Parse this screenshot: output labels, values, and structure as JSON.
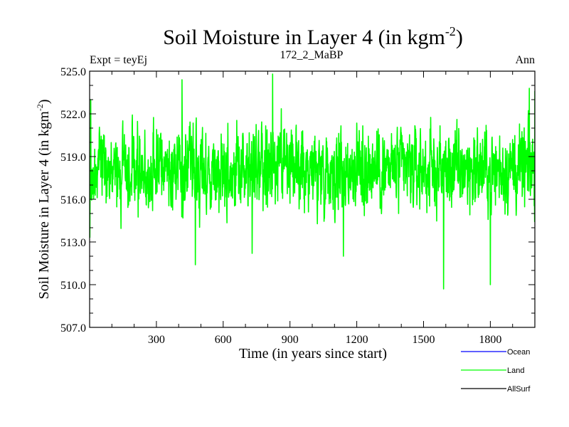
{
  "chart_data": {
    "type": "line",
    "title_main": "Soil Moisture in Layer 4 (in kgm",
    "title_sup": "-2",
    "title_close": ")",
    "subtitle_left": "Expt = teyEj",
    "subtitle_center": "172_2_MaBP",
    "subtitle_right": "Ann",
    "xlabel": "Time (in years since start)",
    "ylabel_main": "Soil Moisture in Layer 4 (in kgm",
    "ylabel_sup": "-2",
    "ylabel_close": ")",
    "xlim": [
      0,
      2000
    ],
    "ylim": [
      507.0,
      525.0
    ],
    "x_ticks": [
      300,
      600,
      900,
      1200,
      1500,
      1800
    ],
    "x_tick_labels": [
      "300",
      "600",
      "900",
      "1200",
      "1500",
      "1800"
    ],
    "y_ticks": [
      507,
      510,
      513,
      516,
      519,
      522,
      525
    ],
    "y_tick_labels": [
      "507.0",
      "510.0",
      "513.0",
      "516.0",
      "519.0",
      "522.0",
      "525.0"
    ],
    "grid": false,
    "legend_position": "bottom-right",
    "legend": [
      {
        "name": "Ocean",
        "color": "#0000ff"
      },
      {
        "name": "Land",
        "color": "#00ff00"
      },
      {
        "name": "AllSurf",
        "color": "#000000"
      }
    ],
    "series": [
      {
        "name": "Land",
        "color": "#00ff00",
        "x_start": 1,
        "x_step": 1,
        "n_points": 2000,
        "mean": 518.1,
        "typical_range": [
          513.5,
          523.0
        ],
        "notable_points": [
          {
            "x": 1,
            "y": 513.3
          },
          {
            "x": 5,
            "y": 523.0
          },
          {
            "x": 415,
            "y": 524.4
          },
          {
            "x": 475,
            "y": 511.4
          },
          {
            "x": 730,
            "y": 512.2
          },
          {
            "x": 822,
            "y": 524.8
          },
          {
            "x": 1140,
            "y": 512.0
          },
          {
            "x": 1590,
            "y": 509.7
          },
          {
            "x": 1800,
            "y": 510.0
          },
          {
            "x": 1975,
            "y": 523.8
          },
          {
            "x": 2000,
            "y": 523.6
          }
        ]
      }
    ]
  }
}
